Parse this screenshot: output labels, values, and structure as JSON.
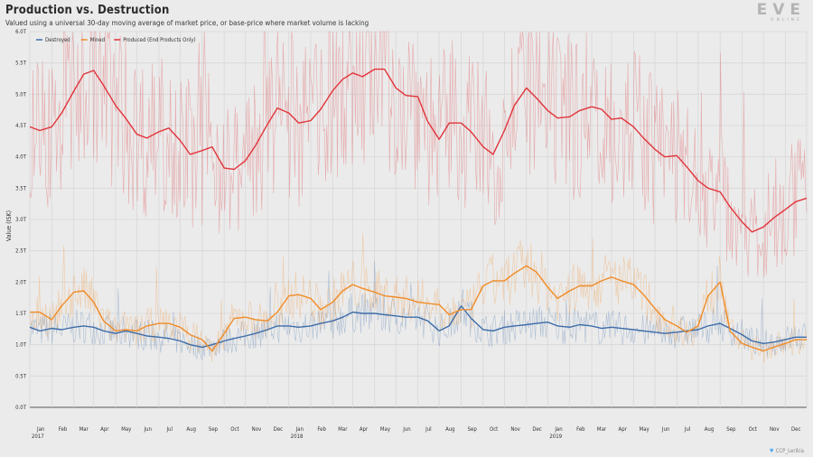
{
  "header": {
    "title": "Production vs. Destruction",
    "subtitle": "Valued using a universal 30-day moving average of market price, or base-price where market volume is lacking"
  },
  "logo": {
    "main": "EVE",
    "sub": "ONLINE"
  },
  "credit": {
    "text": "CCP_Lerikia"
  },
  "colors": {
    "destroyed": "#3d6ca8",
    "mined": "#f08c28",
    "produced": "#e0343a",
    "background": "#ebebeb",
    "grid": "#d8d8d8"
  },
  "chart_data": {
    "type": "line",
    "title": "Production vs. Destruction",
    "subtitle": "Valued using a universal 30-day moving average of market price, or base-price where market volume is lacking",
    "ylabel": "Value (ISK)",
    "xlabel": "",
    "ylim": [
      0,
      6.0
    ],
    "yticks": [
      "0.0T",
      "0.5T",
      "1.0T",
      "1.5T",
      "2.0T",
      "2.5T",
      "3.0T",
      "3.5T",
      "4.0T",
      "4.5T",
      "5.0T",
      "5.5T",
      "6.0T"
    ],
    "x_range": [
      "2016-12-01",
      "2019-12-01"
    ],
    "x_ticks": [
      {
        "label": "Jan",
        "year": "2017"
      },
      {
        "label": "Feb",
        "year": ""
      },
      {
        "label": "Mar",
        "year": ""
      },
      {
        "label": "Apr",
        "year": ""
      },
      {
        "label": "May",
        "year": ""
      },
      {
        "label": "Jun",
        "year": ""
      },
      {
        "label": "Jul",
        "year": ""
      },
      {
        "label": "Aug",
        "year": ""
      },
      {
        "label": "Sep",
        "year": ""
      },
      {
        "label": "Oct",
        "year": ""
      },
      {
        "label": "Nov",
        "year": ""
      },
      {
        "label": "Dec",
        "year": ""
      },
      {
        "label": "Jan",
        "year": "2018"
      },
      {
        "label": "Feb",
        "year": ""
      },
      {
        "label": "Mar",
        "year": ""
      },
      {
        "label": "Apr",
        "year": ""
      },
      {
        "label": "May",
        "year": ""
      },
      {
        "label": "Jun",
        "year": ""
      },
      {
        "label": "Jul",
        "year": ""
      },
      {
        "label": "Aug",
        "year": ""
      },
      {
        "label": "Sep",
        "year": ""
      },
      {
        "label": "Oct",
        "year": ""
      },
      {
        "label": "Nov",
        "year": ""
      },
      {
        "label": "Dec",
        "year": ""
      },
      {
        "label": "Jan",
        "year": "2019"
      },
      {
        "label": "Feb",
        "year": ""
      },
      {
        "label": "Mar",
        "year": ""
      },
      {
        "label": "Apr",
        "year": ""
      },
      {
        "label": "May",
        "year": ""
      },
      {
        "label": "Jun",
        "year": ""
      },
      {
        "label": "Jul",
        "year": ""
      },
      {
        "label": "Aug",
        "year": ""
      },
      {
        "label": "Sep",
        "year": ""
      },
      {
        "label": "Oct",
        "year": ""
      },
      {
        "label": "Nov",
        "year": ""
      },
      {
        "label": "Dec",
        "year": ""
      }
    ],
    "legend_position": "top-left",
    "grid": true,
    "x_months": [
      "2016-12",
      "2017-01",
      "2017-02",
      "2017-03",
      "2017-04",
      "2017-05",
      "2017-06",
      "2017-07",
      "2017-08",
      "2017-09",
      "2017-10",
      "2017-11",
      "2017-12",
      "2018-01",
      "2018-02",
      "2018-03",
      "2018-04",
      "2018-05",
      "2018-06",
      "2018-07",
      "2018-08",
      "2018-09",
      "2018-10",
      "2018-11",
      "2018-12",
      "2019-01",
      "2019-02",
      "2019-03",
      "2019-04",
      "2019-05",
      "2019-06",
      "2019-07",
      "2019-08",
      "2019-09",
      "2019-10",
      "2019-11",
      "2019-12"
    ],
    "series": [
      {
        "name": "Destroyed",
        "key": "destroyed",
        "x": [
          "2016-12-01",
          "2016-12-15",
          "2017-01-01",
          "2017-01-15",
          "2017-02-01",
          "2017-02-15",
          "2017-03-01",
          "2017-03-15",
          "2017-04-01",
          "2017-04-15",
          "2017-05-01",
          "2017-05-15",
          "2017-06-01",
          "2017-06-15",
          "2017-07-01",
          "2017-07-15",
          "2017-08-01",
          "2017-08-15",
          "2017-09-01",
          "2017-09-15",
          "2017-10-01",
          "2017-10-15",
          "2017-11-01",
          "2017-11-15",
          "2017-12-01",
          "2017-12-15",
          "2018-01-01",
          "2018-01-15",
          "2018-02-01",
          "2018-02-15",
          "2018-03-01",
          "2018-03-15",
          "2018-04-01",
          "2018-04-15",
          "2018-05-01",
          "2018-05-15",
          "2018-06-01",
          "2018-06-15",
          "2018-07-01",
          "2018-07-15",
          "2018-08-01",
          "2018-08-15",
          "2018-09-01",
          "2018-09-15",
          "2018-10-01",
          "2018-10-15",
          "2018-11-01",
          "2018-11-15",
          "2018-12-01",
          "2018-12-15",
          "2019-01-01",
          "2019-01-15",
          "2019-02-01",
          "2019-02-15",
          "2019-03-01",
          "2019-03-15",
          "2019-04-01",
          "2019-04-15",
          "2019-05-01",
          "2019-05-15",
          "2019-06-01",
          "2019-06-15",
          "2019-07-01",
          "2019-07-15",
          "2019-08-01",
          "2019-08-15",
          "2019-09-01",
          "2019-09-15",
          "2019-10-01",
          "2019-10-15",
          "2019-11-01",
          "2019-11-15",
          "2019-12-01"
        ],
        "values": [
          1.28,
          1.22,
          1.26,
          1.24,
          1.28,
          1.3,
          1.28,
          1.22,
          1.18,
          1.22,
          1.18,
          1.14,
          1.12,
          1.1,
          1.06,
          1.0,
          0.96,
          1.0,
          1.06,
          1.1,
          1.14,
          1.18,
          1.24,
          1.3,
          1.3,
          1.28,
          1.3,
          1.34,
          1.38,
          1.44,
          1.52,
          1.5,
          1.5,
          1.48,
          1.46,
          1.44,
          1.44,
          1.38,
          1.22,
          1.3,
          1.62,
          1.42,
          1.24,
          1.22,
          1.28,
          1.3,
          1.32,
          1.34,
          1.36,
          1.3,
          1.28,
          1.32,
          1.3,
          1.26,
          1.28,
          1.26,
          1.24,
          1.22,
          1.2,
          1.18,
          1.2,
          1.22,
          1.24,
          1.3,
          1.34,
          1.26,
          1.16,
          1.06,
          1.02,
          1.04,
          1.08,
          1.12,
          1.12
        ]
      },
      {
        "name": "Mined",
        "key": "mined",
        "x": [
          "2016-12-01",
          "2016-12-15",
          "2017-01-01",
          "2017-01-15",
          "2017-02-01",
          "2017-02-15",
          "2017-03-01",
          "2017-03-15",
          "2017-04-01",
          "2017-04-15",
          "2017-05-01",
          "2017-05-15",
          "2017-06-01",
          "2017-06-15",
          "2017-07-01",
          "2017-07-15",
          "2017-08-01",
          "2017-08-15",
          "2017-09-01",
          "2017-09-15",
          "2017-10-01",
          "2017-10-15",
          "2017-11-01",
          "2017-11-15",
          "2017-12-01",
          "2017-12-15",
          "2018-01-01",
          "2018-01-15",
          "2018-02-01",
          "2018-02-15",
          "2018-03-01",
          "2018-03-15",
          "2018-04-01",
          "2018-04-15",
          "2018-05-01",
          "2018-05-15",
          "2018-06-01",
          "2018-06-15",
          "2018-07-01",
          "2018-07-15",
          "2018-08-01",
          "2018-08-15",
          "2018-09-01",
          "2018-09-15",
          "2018-10-01",
          "2018-10-15",
          "2018-11-01",
          "2018-11-15",
          "2018-12-01",
          "2018-12-15",
          "2019-01-01",
          "2019-01-15",
          "2019-02-01",
          "2019-02-15",
          "2019-03-01",
          "2019-03-15",
          "2019-04-01",
          "2019-04-15",
          "2019-05-01",
          "2019-05-15",
          "2019-06-01",
          "2019-06-15",
          "2019-07-01",
          "2019-07-15",
          "2019-08-01",
          "2019-08-15",
          "2019-09-01",
          "2019-09-15",
          "2019-10-01",
          "2019-10-15",
          "2019-11-01",
          "2019-11-15",
          "2019-12-01"
        ],
        "values": [
          1.52,
          1.52,
          1.4,
          1.62,
          1.84,
          1.86,
          1.68,
          1.38,
          1.22,
          1.24,
          1.22,
          1.3,
          1.34,
          1.34,
          1.28,
          1.16,
          1.08,
          0.9,
          1.18,
          1.42,
          1.44,
          1.4,
          1.38,
          1.52,
          1.78,
          1.8,
          1.74,
          1.56,
          1.68,
          1.86,
          1.96,
          1.9,
          1.84,
          1.78,
          1.76,
          1.74,
          1.68,
          1.66,
          1.64,
          1.48,
          1.56,
          1.56,
          1.94,
          2.02,
          2.02,
          2.14,
          2.26,
          2.16,
          1.92,
          1.74,
          1.86,
          1.94,
          1.94,
          2.02,
          2.08,
          2.02,
          1.96,
          1.8,
          1.58,
          1.4,
          1.3,
          1.2,
          1.3,
          1.78,
          2.0,
          1.22,
          1.02,
          0.96,
          0.9,
          0.96,
          1.02,
          1.08,
          1.08
        ]
      },
      {
        "name": "Produced (End Products Only)",
        "key": "produced",
        "x": [
          "2016-12-01",
          "2016-12-15",
          "2017-01-01",
          "2017-01-15",
          "2017-02-01",
          "2017-02-15",
          "2017-03-01",
          "2017-03-15",
          "2017-04-01",
          "2017-04-15",
          "2017-05-01",
          "2017-05-15",
          "2017-06-01",
          "2017-06-15",
          "2017-07-01",
          "2017-07-15",
          "2017-08-01",
          "2017-08-15",
          "2017-09-01",
          "2017-09-15",
          "2017-10-01",
          "2017-10-15",
          "2017-11-01",
          "2017-11-15",
          "2017-12-01",
          "2017-12-15",
          "2018-01-01",
          "2018-01-15",
          "2018-02-01",
          "2018-02-15",
          "2018-03-01",
          "2018-03-15",
          "2018-04-01",
          "2018-04-15",
          "2018-05-01",
          "2018-05-15",
          "2018-06-01",
          "2018-06-15",
          "2018-07-01",
          "2018-07-15",
          "2018-08-01",
          "2018-08-15",
          "2018-09-01",
          "2018-09-15",
          "2018-10-01",
          "2018-10-15",
          "2018-11-01",
          "2018-11-15",
          "2018-12-01",
          "2018-12-15",
          "2019-01-01",
          "2019-01-15",
          "2019-02-01",
          "2019-02-15",
          "2019-03-01",
          "2019-03-15",
          "2019-04-01",
          "2019-04-15",
          "2019-05-01",
          "2019-05-15",
          "2019-06-01",
          "2019-06-15",
          "2019-07-01",
          "2019-07-15",
          "2019-08-01",
          "2019-08-15",
          "2019-09-01",
          "2019-09-15",
          "2019-10-01",
          "2019-10-15",
          "2019-11-01",
          "2019-11-15",
          "2019-12-01"
        ],
        "values": [
          4.48,
          4.42,
          4.48,
          4.7,
          5.05,
          5.32,
          5.38,
          5.14,
          4.82,
          4.62,
          4.36,
          4.3,
          4.4,
          4.46,
          4.26,
          4.04,
          4.1,
          4.16,
          3.82,
          3.8,
          3.94,
          4.18,
          4.52,
          4.78,
          4.7,
          4.54,
          4.58,
          4.76,
          5.06,
          5.24,
          5.34,
          5.28,
          5.4,
          5.4,
          5.1,
          4.98,
          4.96,
          4.56,
          4.28,
          4.54,
          4.54,
          4.4,
          4.16,
          4.04,
          4.42,
          4.82,
          5.1,
          4.94,
          4.74,
          4.62,
          4.64,
          4.74,
          4.8,
          4.76,
          4.6,
          4.62,
          4.48,
          4.3,
          4.12,
          4.0,
          4.02,
          3.84,
          3.62,
          3.5,
          3.44,
          3.2,
          2.96,
          2.8,
          2.88,
          3.02,
          3.16,
          3.28,
          3.34
        ]
      }
    ]
  }
}
